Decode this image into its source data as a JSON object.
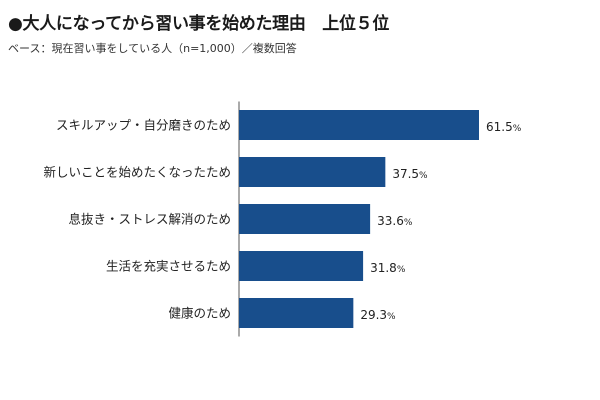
{
  "chart_data": {
    "type": "bar",
    "orientation": "horizontal",
    "title": "●大人になってから習い事を始めた理由　上位５位",
    "subtitle": "ベース：現在習い事をしている人（n=1,000）／複数回答",
    "categories": [
      "スキルアップ・自分磨きのため",
      "新しいことを始めたくなったため",
      "息抜き・ストレス解消のため",
      "生活を充実させるため",
      "健康のため"
    ],
    "values": [
      61.5,
      37.5,
      33.6,
      31.8,
      29.3
    ],
    "unit": "%",
    "xlim": [
      0,
      61.5
    ],
    "bar_color": "#184e8c",
    "grid": false,
    "legend": "none"
  }
}
